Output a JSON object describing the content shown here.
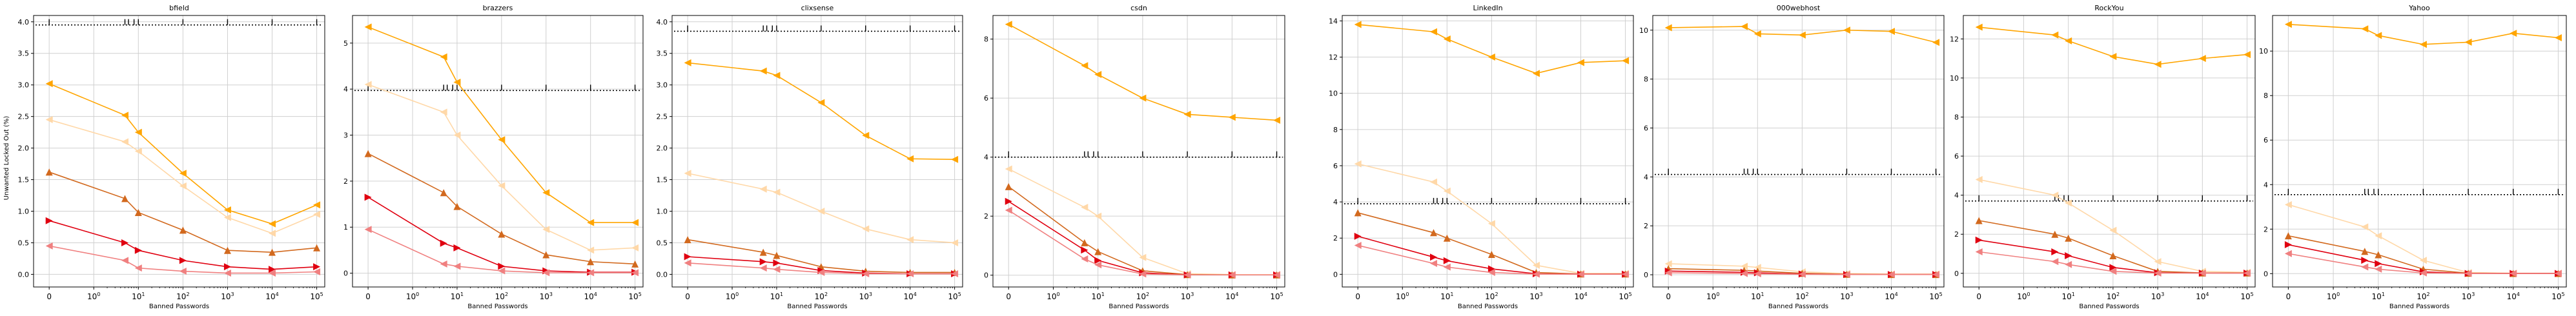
{
  "figure": {
    "ylabel": "Unwanted Locked Out (%)"
  },
  "styles": {
    "colors": {
      "orange": "#ffa500",
      "light_orange": "#ffd8a8",
      "dark_orange": "#d2691e",
      "red": "#e00010",
      "light_red": "#f08080",
      "reference": "#000000",
      "grid": "#d0d0d0"
    },
    "series_style": {
      "orange": {
        "color": "orange",
        "marker": "left-triangle",
        "dashed": false
      },
      "light_orange": {
        "color": "light_orange",
        "marker": "left-triangle",
        "dashed": false
      },
      "dark_orange": {
        "color": "dark_orange",
        "marker": "up-triangle",
        "dashed": false
      },
      "red": {
        "color": "red",
        "marker": "right-triangle",
        "dashed": false
      },
      "light_red": {
        "color": "light_red",
        "marker": "left-triangle",
        "dashed": false
      },
      "reference": {
        "color": "reference",
        "marker": "tick",
        "dashed": true
      }
    }
  },
  "chart_data": [
    {
      "type": "line",
      "title": "bfield",
      "xlabel": "Banned Passwords",
      "ylabel": "Unwanted Locked Out (%)",
      "xscale": "symlog",
      "xticks": [
        "0",
        "10^0",
        "10^1",
        "10^2",
        "10^3",
        "10^4",
        "10^5"
      ],
      "ylim": [
        -0.2,
        4.1
      ],
      "yticks": [
        "0.0",
        "0.5",
        "1.0",
        "1.5",
        "2.0",
        "2.5",
        "3.0",
        "3.5",
        "4.0"
      ],
      "grid": true,
      "x": [
        0,
        5,
        10,
        100,
        1000,
        10000,
        100000
      ],
      "series": [
        {
          "style": "reference",
          "values": [
            3.95,
            3.95,
            3.95,
            3.95,
            3.95,
            3.95,
            3.95
          ]
        },
        {
          "style": "orange",
          "values": [
            3.02,
            2.52,
            2.25,
            1.6,
            1.02,
            0.8,
            1.1
          ]
        },
        {
          "style": "light_orange",
          "values": [
            2.45,
            2.1,
            1.95,
            1.4,
            0.9,
            0.65,
            0.95
          ]
        },
        {
          "style": "dark_orange",
          "values": [
            1.62,
            1.2,
            0.98,
            0.7,
            0.38,
            0.35,
            0.42
          ]
        },
        {
          "style": "red",
          "values": [
            0.85,
            0.5,
            0.38,
            0.22,
            0.12,
            0.08,
            0.12
          ]
        },
        {
          "style": "light_red",
          "values": [
            0.45,
            0.22,
            0.1,
            0.05,
            0.02,
            0.02,
            0.04
          ]
        }
      ]
    },
    {
      "type": "line",
      "title": "brazzers",
      "xlabel": "Banned Passwords",
      "xscale": "symlog",
      "xticks": [
        "0",
        "10^0",
        "10^1",
        "10^2",
        "10^3",
        "10^4",
        "10^5"
      ],
      "ylim": [
        -0.3,
        5.6
      ],
      "yticks": [
        "0",
        "1",
        "2",
        "3",
        "4",
        "5"
      ],
      "grid": true,
      "x": [
        0,
        5,
        10,
        100,
        1000,
        10000,
        100000
      ],
      "series": [
        {
          "style": "reference",
          "values": [
            3.97,
            3.97,
            3.97,
            3.97,
            3.97,
            3.97,
            3.97
          ]
        },
        {
          "style": "orange",
          "values": [
            5.35,
            4.7,
            4.15,
            2.9,
            1.75,
            1.1,
            1.1
          ]
        },
        {
          "style": "light_orange",
          "values": [
            4.1,
            3.5,
            3.0,
            1.9,
            0.95,
            0.5,
            0.55
          ]
        },
        {
          "style": "dark_orange",
          "values": [
            2.6,
            1.75,
            1.45,
            0.85,
            0.4,
            0.25,
            0.2
          ]
        },
        {
          "style": "red",
          "values": [
            1.65,
            0.65,
            0.55,
            0.15,
            0.05,
            0.02,
            0.02
          ]
        },
        {
          "style": "light_red",
          "values": [
            0.95,
            0.2,
            0.15,
            0.05,
            0.01,
            0.01,
            0.01
          ]
        }
      ]
    },
    {
      "type": "line",
      "title": "clixsense",
      "xlabel": "Banned Passwords",
      "xscale": "symlog",
      "xticks": [
        "0",
        "10^0",
        "10^1",
        "10^2",
        "10^3",
        "10^4",
        "10^5"
      ],
      "ylim": [
        -0.2,
        4.1
      ],
      "yticks": [
        "0.0",
        "0.5",
        "1.0",
        "1.5",
        "2.0",
        "2.5",
        "3.0",
        "3.5",
        "4.0"
      ],
      "grid": true,
      "x": [
        0,
        5,
        10,
        100,
        1000,
        10000,
        100000
      ],
      "series": [
        {
          "style": "reference",
          "values": [
            3.85,
            3.85,
            3.85,
            3.85,
            3.85,
            3.85,
            3.85
          ]
        },
        {
          "style": "orange",
          "values": [
            3.35,
            3.22,
            3.15,
            2.72,
            2.2,
            1.83,
            1.82
          ]
        },
        {
          "style": "light_orange",
          "values": [
            1.6,
            1.35,
            1.3,
            1.0,
            0.72,
            0.55,
            0.5
          ]
        },
        {
          "style": "dark_orange",
          "values": [
            0.55,
            0.35,
            0.3,
            0.12,
            0.05,
            0.03,
            0.03
          ]
        },
        {
          "style": "red",
          "values": [
            0.28,
            0.2,
            0.18,
            0.06,
            0.02,
            0.01,
            0.01
          ]
        },
        {
          "style": "light_red",
          "values": [
            0.18,
            0.1,
            0.08,
            0.03,
            0.01,
            0.01,
            0.01
          ]
        }
      ]
    },
    {
      "type": "line",
      "title": "csdn",
      "xlabel": "Banned Passwords",
      "xscale": "symlog",
      "xticks": [
        "0",
        "10^0",
        "10^1",
        "10^2",
        "10^3",
        "10^4",
        "10^5"
      ],
      "ylim": [
        -0.4,
        8.8
      ],
      "yticks": [
        "0",
        "2",
        "4",
        "6",
        "8"
      ],
      "grid": true,
      "x": [
        0,
        5,
        10,
        100,
        1000,
        10000,
        100000
      ],
      "series": [
        {
          "style": "reference",
          "values": [
            4.0,
            4.0,
            4.0,
            4.0,
            4.0,
            4.0,
            4.0
          ]
        },
        {
          "style": "orange",
          "values": [
            8.5,
            7.1,
            6.8,
            6.0,
            5.45,
            5.35,
            5.25
          ]
        },
        {
          "style": "light_orange",
          "values": [
            3.6,
            2.3,
            2.0,
            0.6,
            0.05,
            0.02,
            0.02
          ]
        },
        {
          "style": "dark_orange",
          "values": [
            3.0,
            1.1,
            0.8,
            0.15,
            0.02,
            0.01,
            0.01
          ]
        },
        {
          "style": "red",
          "values": [
            2.5,
            0.85,
            0.5,
            0.08,
            0.01,
            0.01,
            0.01
          ]
        },
        {
          "style": "light_red",
          "values": [
            2.2,
            0.55,
            0.35,
            0.04,
            0.01,
            0.01,
            0.01
          ]
        }
      ]
    },
    {
      "type": "line",
      "title": "LinkedIn",
      "xlabel": "Banned Passwords",
      "xscale": "symlog",
      "xticks": [
        "0",
        "10^0",
        "10^1",
        "10^2",
        "10^3",
        "10^4",
        "10^5"
      ],
      "ylim": [
        -0.7,
        14.3
      ],
      "yticks": [
        "0",
        "2",
        "4",
        "6",
        "8",
        "10",
        "12",
        "14"
      ],
      "grid": true,
      "x": [
        0,
        5,
        10,
        100,
        1000,
        10000,
        100000
      ],
      "series": [
        {
          "style": "reference",
          "values": [
            3.9,
            3.9,
            3.9,
            3.9,
            3.9,
            3.9,
            3.9
          ]
        },
        {
          "style": "orange",
          "values": [
            13.8,
            13.4,
            13.0,
            12.0,
            11.1,
            11.7,
            11.8
          ]
        },
        {
          "style": "light_orange",
          "values": [
            6.1,
            5.1,
            4.6,
            2.8,
            0.5,
            0.05,
            0.05
          ]
        },
        {
          "style": "dark_orange",
          "values": [
            3.4,
            2.3,
            2.0,
            1.1,
            0.1,
            0.02,
            0.02
          ]
        },
        {
          "style": "red",
          "values": [
            2.1,
            0.95,
            0.75,
            0.3,
            0.03,
            0.01,
            0.01
          ]
        },
        {
          "style": "light_red",
          "values": [
            1.6,
            0.6,
            0.4,
            0.1,
            0.01,
            0.01,
            0.01
          ]
        }
      ]
    },
    {
      "type": "line",
      "title": "000webhost",
      "xlabel": "Banned Passwords",
      "xscale": "symlog",
      "xticks": [
        "0",
        "10^0",
        "10^1",
        "10^2",
        "10^3",
        "10^4",
        "10^5"
      ],
      "ylim": [
        -0.5,
        10.6
      ],
      "yticks": [
        "0",
        "2",
        "4",
        "6",
        "8",
        "10"
      ],
      "grid": true,
      "x": [
        0,
        5,
        10,
        100,
        1000,
        10000,
        100000
      ],
      "series": [
        {
          "style": "reference",
          "values": [
            4.1,
            4.1,
            4.1,
            4.1,
            4.1,
            4.1,
            4.1
          ]
        },
        {
          "style": "orange",
          "values": [
            10.1,
            10.15,
            9.85,
            9.8,
            10.0,
            9.95,
            9.5
          ]
        },
        {
          "style": "light_orange",
          "values": [
            0.45,
            0.35,
            0.3,
            0.12,
            0.05,
            0.03,
            0.03
          ]
        },
        {
          "style": "dark_orange",
          "values": [
            0.25,
            0.18,
            0.15,
            0.06,
            0.02,
            0.01,
            0.01
          ]
        },
        {
          "style": "red",
          "values": [
            0.15,
            0.1,
            0.08,
            0.03,
            0.01,
            0.01,
            0.01
          ]
        },
        {
          "style": "light_red",
          "values": [
            0.08,
            0.05,
            0.04,
            0.02,
            0.01,
            0.01,
            0.01
          ]
        }
      ]
    },
    {
      "type": "line",
      "title": "RockYou",
      "xlabel": "Banned Passwords",
      "xscale": "symlog",
      "xticks": [
        "0",
        "10^0",
        "10^1",
        "10^2",
        "10^3",
        "10^4",
        "10^5"
      ],
      "ylim": [
        -0.7,
        13.2
      ],
      "yticks": [
        "0",
        "2",
        "4",
        "6",
        "8",
        "10",
        "12"
      ],
      "grid": true,
      "x": [
        0,
        5,
        10,
        100,
        1000,
        10000,
        100000
      ],
      "series": [
        {
          "style": "reference",
          "values": [
            3.7,
            3.7,
            3.7,
            3.7,
            3.7,
            3.7,
            3.7
          ]
        },
        {
          "style": "orange",
          "values": [
            12.6,
            12.2,
            11.9,
            11.1,
            10.7,
            11.0,
            11.2
          ]
        },
        {
          "style": "light_orange",
          "values": [
            4.8,
            4.0,
            3.6,
            2.2,
            0.6,
            0.1,
            0.05
          ]
        },
        {
          "style": "dark_orange",
          "values": [
            2.7,
            2.0,
            1.8,
            0.9,
            0.1,
            0.02,
            0.02
          ]
        },
        {
          "style": "red",
          "values": [
            1.7,
            1.1,
            0.9,
            0.3,
            0.03,
            0.01,
            0.01
          ]
        },
        {
          "style": "light_red",
          "values": [
            1.1,
            0.6,
            0.45,
            0.1,
            0.01,
            0.01,
            0.01
          ]
        }
      ]
    },
    {
      "type": "line",
      "title": "Yahoo",
      "xlabel": "Banned Passwords",
      "xscale": "symlog",
      "xticks": [
        "0",
        "10^0",
        "10^1",
        "10^2",
        "10^3",
        "10^4",
        "10^5"
      ],
      "ylim": [
        -0.6,
        11.6
      ],
      "yticks": [
        "0",
        "2",
        "4",
        "6",
        "8",
        "10"
      ],
      "grid": true,
      "x": [
        0,
        5,
        10,
        100,
        1000,
        10000,
        100000
      ],
      "series": [
        {
          "style": "reference",
          "values": [
            3.55,
            3.55,
            3.55,
            3.55,
            3.55,
            3.55,
            3.55
          ]
        },
        {
          "style": "orange",
          "values": [
            11.2,
            11.0,
            10.7,
            10.3,
            10.4,
            10.8,
            10.6
          ]
        },
        {
          "style": "light_orange",
          "values": [
            3.1,
            2.1,
            1.7,
            0.6,
            0.05,
            0.02,
            0.02
          ]
        },
        {
          "style": "dark_orange",
          "values": [
            1.7,
            1.0,
            0.85,
            0.2,
            0.02,
            0.01,
            0.01
          ]
        },
        {
          "style": "red",
          "values": [
            1.3,
            0.6,
            0.45,
            0.08,
            0.01,
            0.01,
            0.01
          ]
        },
        {
          "style": "light_red",
          "values": [
            0.9,
            0.3,
            0.2,
            0.03,
            0.01,
            0.01,
            0.01
          ]
        }
      ]
    }
  ]
}
